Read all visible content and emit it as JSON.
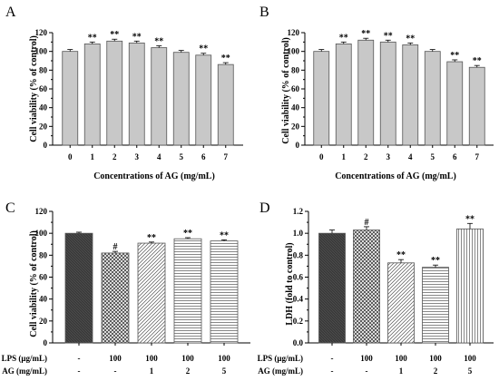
{
  "chart_data": [
    {
      "type": "bar",
      "panel": "A",
      "categories": [
        "0",
        "1",
        "2",
        "3",
        "4",
        "5",
        "6",
        "7"
      ],
      "values": [
        100,
        108,
        111,
        109,
        104,
        99,
        96,
        86
      ],
      "errors": [
        2,
        2,
        2,
        2,
        2,
        2,
        2,
        2
      ],
      "significance": [
        "",
        "**",
        "**",
        "**",
        "**",
        "",
        "**",
        "**"
      ],
      "ylim": [
        0,
        120
      ],
      "yticks": [
        "0",
        "20",
        "40",
        "60",
        "80",
        "100",
        "120"
      ],
      "xlabel": "Concentrations of AG (mg/mL)",
      "ylabel": "Cell viability (% of control)",
      "bar_color": "#c8c8c8"
    },
    {
      "type": "bar",
      "panel": "B",
      "categories": [
        "0",
        "1",
        "2",
        "3",
        "4",
        "5",
        "6",
        "7"
      ],
      "values": [
        100,
        108,
        112,
        110,
        107,
        100,
        89,
        83
      ],
      "errors": [
        2,
        2,
        2,
        2,
        2,
        2,
        2,
        2
      ],
      "significance": [
        "",
        "**",
        "**",
        "**",
        "**",
        "",
        "**",
        "**"
      ],
      "ylim": [
        0,
        120
      ],
      "yticks": [
        "0",
        "20",
        "40",
        "60",
        "80",
        "100",
        "120"
      ],
      "xlabel": "Concentrations of AG (mg/mL)",
      "ylabel": "Cell viability (% of control)",
      "bar_color": "#c8c8c8"
    },
    {
      "type": "bar",
      "panel": "C",
      "categories": [
        "1",
        "2",
        "3",
        "4",
        "5"
      ],
      "values": [
        100,
        82,
        91,
        95,
        93
      ],
      "errors": [
        1,
        1.5,
        1,
        1,
        1
      ],
      "significance": [
        "",
        "#",
        "**",
        "**",
        "**"
      ],
      "ylim": [
        0,
        120
      ],
      "yticks": [
        "0",
        "20",
        "40",
        "60",
        "80",
        "100",
        "120"
      ],
      "ylabel": "Cell viability (% of control)",
      "row_labels": [
        "LPS (μg/mL)",
        "AG (mg/mL)"
      ],
      "rows": [
        [
          "-",
          "100",
          "100",
          "100",
          "100"
        ],
        [
          "-",
          "-",
          "1",
          "2",
          "5"
        ]
      ],
      "patterns": [
        "dark",
        "crosshatch",
        "diagonal",
        "horizontal",
        "horizontal"
      ]
    },
    {
      "type": "bar",
      "panel": "D",
      "categories": [
        "1",
        "2",
        "3",
        "4",
        "5"
      ],
      "values": [
        1.0,
        1.03,
        0.73,
        0.69,
        1.04
      ],
      "errors": [
        0.03,
        0.03,
        0.03,
        0.02,
        0.05
      ],
      "significance": [
        "",
        "#",
        "**",
        "**",
        "**"
      ],
      "ylim": [
        0,
        1.2
      ],
      "yticks": [
        "0.0",
        "0.2",
        "0.4",
        "0.6",
        "0.8",
        "1.0",
        "1.2"
      ],
      "ylabel": "LDH (fold to control)",
      "row_labels": [
        "LPS (μg/mL)",
        "AG (mg/mL)"
      ],
      "rows": [
        [
          "-",
          "100",
          "100",
          "100",
          "100"
        ],
        [
          "-",
          "-",
          "1",
          "2",
          "5"
        ]
      ],
      "patterns": [
        "dark",
        "crosshatch",
        "diagonal",
        "horizontal",
        "vertical"
      ]
    }
  ]
}
